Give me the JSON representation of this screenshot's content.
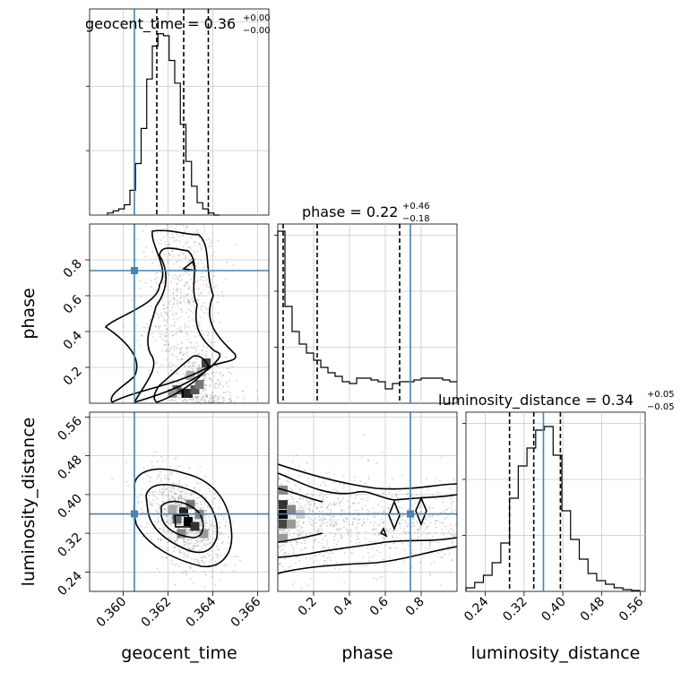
{
  "figure": {
    "parameters": [
      "geocent_time",
      "phase",
      "luminosity_distance"
    ],
    "truth_color": "#4682b4"
  },
  "chart_data": [
    {
      "type": "histogram",
      "panel": "geocent_time",
      "title_label": "geocent_time = 0.36",
      "title_sup": "+0.00",
      "title_sub": "−0.00",
      "bin_edges_start": 0.3593,
      "bin_width": 0.00025,
      "bin_counts": [
        0.01,
        0.02,
        0.03,
        0.05,
        0.12,
        0.25,
        0.42,
        0.66,
        0.82,
        0.88,
        0.87,
        0.75,
        0.64,
        0.44,
        0.26,
        0.14,
        0.06,
        0.03,
        0.01,
        0.0
      ],
      "quantiles": [
        0.3615,
        0.3627,
        0.3638
      ],
      "truth": 0.3605,
      "xlim": [
        0.3585,
        0.3665
      ],
      "ylim": [
        0,
        1
      ]
    },
    {
      "type": "2d-density",
      "panel": "geocent_time vs phase",
      "x": "geocent_time",
      "y": "phase",
      "xlim": [
        0.3585,
        0.3665
      ],
      "ylim": [
        0.0,
        1.0
      ],
      "truth": [
        0.3605,
        0.74
      ]
    },
    {
      "type": "histogram",
      "panel": "phase",
      "title_label": "phase = 0.22",
      "title_sup": "+0.46",
      "title_sub": "−0.18",
      "bin_edges_start": 0.0,
      "bin_width": 0.04,
      "bin_counts": [
        0.96,
        0.54,
        0.4,
        0.33,
        0.28,
        0.24,
        0.2,
        0.17,
        0.15,
        0.12,
        0.11,
        0.14,
        0.14,
        0.13,
        0.12,
        0.08,
        0.11,
        0.12,
        0.12,
        0.13,
        0.14,
        0.14,
        0.14,
        0.13,
        0.12
      ],
      "quantiles": [
        0.03,
        0.22,
        0.68
      ],
      "truth": 0.74,
      "xlim": [
        0.0,
        1.0
      ],
      "ylim": [
        0,
        1
      ]
    },
    {
      "type": "2d-density",
      "panel": "geocent_time vs luminosity_distance",
      "x": "geocent_time",
      "y": "luminosity_distance",
      "xlim": [
        0.3585,
        0.3665
      ],
      "ylim": [
        0.2,
        0.57
      ],
      "truth": [
        0.3605,
        0.36
      ]
    },
    {
      "type": "2d-density",
      "panel": "phase vs luminosity_distance",
      "x": "phase",
      "y": "luminosity_distance",
      "xlim": [
        0.0,
        1.0
      ],
      "ylim": [
        0.2,
        0.57
      ],
      "truth": [
        0.74,
        0.36
      ]
    },
    {
      "type": "histogram",
      "panel": "luminosity_distance",
      "title_label": "luminosity_distance = 0.34",
      "title_sup": "+0.05",
      "title_sub": "−0.05",
      "bin_edges_start": 0.2,
      "bin_width": 0.018,
      "bin_counts": [
        0.02,
        0.05,
        0.09,
        0.16,
        0.27,
        0.52,
        0.7,
        0.8,
        0.9,
        0.92,
        0.76,
        0.45,
        0.29,
        0.18,
        0.1,
        0.06,
        0.04,
        0.02,
        0.01,
        0.005
      ],
      "quantiles": [
        0.29,
        0.34,
        0.395
      ],
      "truth": 0.36,
      "xlim": [
        0.2,
        0.57
      ],
      "ylim": [
        0,
        1
      ]
    }
  ],
  "axes": {
    "geocent_time": {
      "label": "geocent_time",
      "ticks": [
        "0.360",
        "0.362",
        "0.364",
        "0.366"
      ],
      "tick_values": [
        0.36,
        0.362,
        0.364,
        0.366
      ]
    },
    "phase_x": {
      "label": "phase",
      "ticks": [
        "0.2",
        "0.4",
        "0.6",
        "0.8"
      ],
      "tick_values": [
        0.2,
        0.4,
        0.6,
        0.8
      ]
    },
    "phase_y": {
      "label": "phase",
      "ticks": [
        "0.2",
        "0.4",
        "0.6",
        "0.8"
      ],
      "tick_values": [
        0.2,
        0.4,
        0.6,
        0.8
      ]
    },
    "luminosity_distance_x": {
      "label": "luminosity_distance",
      "ticks": [
        "0.24",
        "0.32",
        "0.40",
        "0.48",
        "0.56"
      ],
      "tick_values": [
        0.24,
        0.32,
        0.4,
        0.48,
        0.56
      ]
    },
    "luminosity_distance_y": {
      "label": "luminosity_distance",
      "ticks": [
        "0.24",
        "0.32",
        "0.40",
        "0.48",
        "0.56"
      ],
      "tick_values": [
        0.24,
        0.32,
        0.4,
        0.48,
        0.56
      ]
    }
  }
}
